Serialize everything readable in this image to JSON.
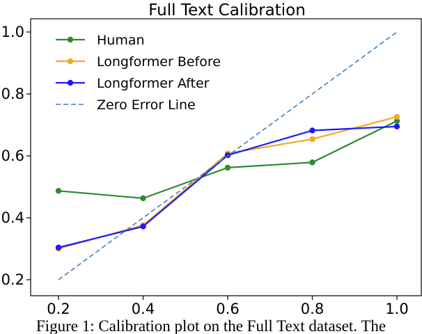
{
  "chart_data": {
    "type": "line",
    "title": "Full Text Calibration",
    "xlabel": "",
    "ylabel": "",
    "xlim": [
      0.2,
      1.0
    ],
    "ylim": [
      0.2,
      1.0
    ],
    "x_ticks": [
      "0.2",
      "0.4",
      "0.6",
      "0.8",
      "1.0"
    ],
    "y_ticks": [
      "0.2",
      "0.4",
      "0.6",
      "0.8",
      "1.0"
    ],
    "grid": false,
    "legend_position": "top-left",
    "series": [
      {
        "name": "Human",
        "color": "#2e8b2e",
        "style": "solid",
        "marker": "circle",
        "x": [
          0.2,
          0.4,
          0.6,
          0.8,
          1.0
        ],
        "y": [
          0.487,
          0.463,
          0.562,
          0.579,
          0.713
        ]
      },
      {
        "name": "Longformer Before",
        "color": "#f5a623",
        "style": "solid",
        "marker": "circle",
        "x": [
          0.2,
          0.4,
          0.6,
          0.8,
          1.0
        ],
        "y": [
          0.3,
          0.376,
          0.608,
          0.654,
          0.726
        ]
      },
      {
        "name": "Longformer After",
        "color": "#1a1aff",
        "style": "solid",
        "marker": "circle",
        "x": [
          0.2,
          0.4,
          0.6,
          0.8,
          1.0
        ],
        "y": [
          0.304,
          0.372,
          0.602,
          0.682,
          0.695
        ]
      },
      {
        "name": "Zero Error Line",
        "color": "#3a7ebf",
        "style": "dashed",
        "marker": "none",
        "x": [
          0.2,
          1.0
        ],
        "y": [
          0.2,
          1.0
        ]
      }
    ]
  },
  "caption": "Figure 1: Calibration plot on the Full Text dataset. The"
}
